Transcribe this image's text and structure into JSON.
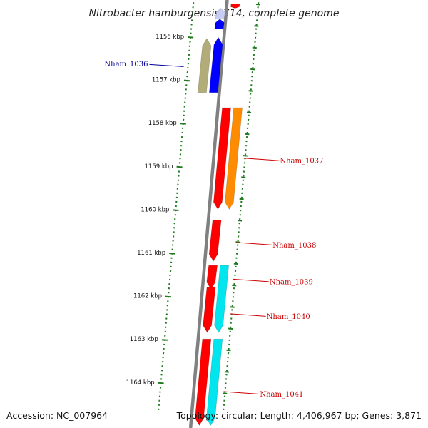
{
  "title": "Nitrobacter hamburgensis X14, complete genome",
  "footer": {
    "accession": "Accession: NC_007964",
    "summary": "Topology: circular; Length: 4,406,967 bp; Genes: 3,871"
  },
  "colors": {
    "backbone": "#808080",
    "ticks": "#1f7a1f",
    "gene_red": "#ff0000",
    "gene_orange": "#ff8c00",
    "gene_blue": "#0000ff",
    "gene_light_blue": "#c8cdf5",
    "gene_cyan": "#00e5ee",
    "gene_olive": "#b2ad78",
    "label_blue": "#000099",
    "label_red": "#cc0000"
  },
  "ruler": {
    "unit": "kbp",
    "labels": [
      "1156 kbp",
      "1157 kbp",
      "1158 kbp",
      "1159 kbp",
      "1160 kbp",
      "1161 kbp",
      "1162 kbp",
      "1163 kbp",
      "1164 kbp"
    ]
  },
  "genes": [
    {
      "id": "top-red",
      "track": 1,
      "start": 1155.25,
      "end": 1155.35,
      "color": "gene_red"
    },
    {
      "id": "light-blue",
      "track": 0,
      "start": 1155.35,
      "end": 1155.6,
      "color": "gene_light_blue"
    },
    {
      "id": "blue-small",
      "track": 0,
      "start": 1155.6,
      "end": 1155.83,
      "color": "gene_blue"
    },
    {
      "id": "Nham_1036-olive",
      "track": -1,
      "start": 1156.05,
      "end": 1157.3,
      "color": "gene_olive"
    },
    {
      "id": "Nham_1036-blue",
      "track": 0,
      "start": 1156.02,
      "end": 1157.3,
      "color": "gene_blue"
    },
    {
      "id": "Nham_1037-red",
      "track": 1,
      "start": 1157.65,
      "end": 1160.0,
      "color": "gene_red"
    },
    {
      "id": "Nham_1037-orange",
      "track": 2,
      "start": 1157.65,
      "end": 1160.0,
      "color": "gene_orange"
    },
    {
      "id": "Nham_1038",
      "track": 1,
      "start": 1160.25,
      "end": 1161.2,
      "color": "gene_red"
    },
    {
      "id": "Nham_1039",
      "track": 1,
      "start": 1161.3,
      "end": 1161.85,
      "color": "gene_red"
    },
    {
      "id": "Nham_1040-red",
      "track": 1,
      "start": 1161.8,
      "end": 1162.85,
      "color": "gene_red"
    },
    {
      "id": "Nham_1040-cyan",
      "track": 2,
      "start": 1161.3,
      "end": 1162.85,
      "color": "gene_cyan"
    },
    {
      "id": "Nham_1041-red",
      "track": 1,
      "start": 1163.0,
      "end": 1165.0,
      "color": "gene_red"
    },
    {
      "id": "Nham_1041-cyan",
      "track": 2,
      "start": 1163.0,
      "end": 1165.0,
      "color": "gene_cyan"
    }
  ],
  "labels": [
    {
      "text": "Nham_1036",
      "side": "left",
      "pos": 1156.7,
      "color": "label_blue"
    },
    {
      "text": "Nham_1037",
      "side": "right",
      "pos": 1158.85,
      "color": "label_red"
    },
    {
      "text": "Nham_1038",
      "side": "right",
      "pos": 1160.8,
      "color": "label_red"
    },
    {
      "text": "Nham_1039",
      "side": "right",
      "pos": 1161.65,
      "color": "label_red"
    },
    {
      "text": "Nham_1040",
      "side": "right",
      "pos": 1162.45,
      "color": "label_red"
    },
    {
      "text": "Nham_1041",
      "side": "right",
      "pos": 1164.25,
      "color": "label_red"
    }
  ]
}
